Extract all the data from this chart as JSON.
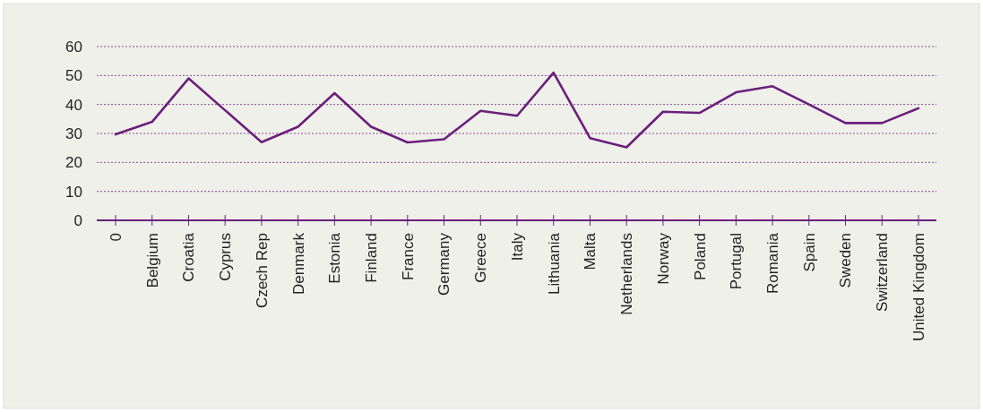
{
  "chart_data": {
    "type": "line",
    "categories": [
      "0",
      "Belgium",
      "Croatia",
      "Cyprus",
      "Czech Rep",
      "Denmark",
      "Estonia",
      "Finland",
      "France",
      "Germany",
      "Greece",
      "Italy",
      "Lithuania",
      "Malta",
      "Netherlands",
      "Norway",
      "Poland",
      "Portugal",
      "Romania",
      "Spain",
      "Sweden",
      "Switzerland",
      "United Kingdom"
    ],
    "series": [
      {
        "color": "#6a1f7a",
        "values": [
          29.7,
          34,
          49,
          38,
          27,
          32.3,
          43.9,
          32.3,
          26.9,
          28,
          37.8,
          36.1,
          51,
          28.4,
          25.2,
          37.5,
          37.1,
          44.2,
          46.3,
          40,
          33.6,
          33.6,
          38.7
        ]
      }
    ],
    "ylim": [
      0,
      60
    ],
    "yticks": [
      0,
      10,
      20,
      30,
      40,
      50,
      60
    ],
    "grid": "y",
    "marker": "none",
    "line_style": "solid"
  }
}
